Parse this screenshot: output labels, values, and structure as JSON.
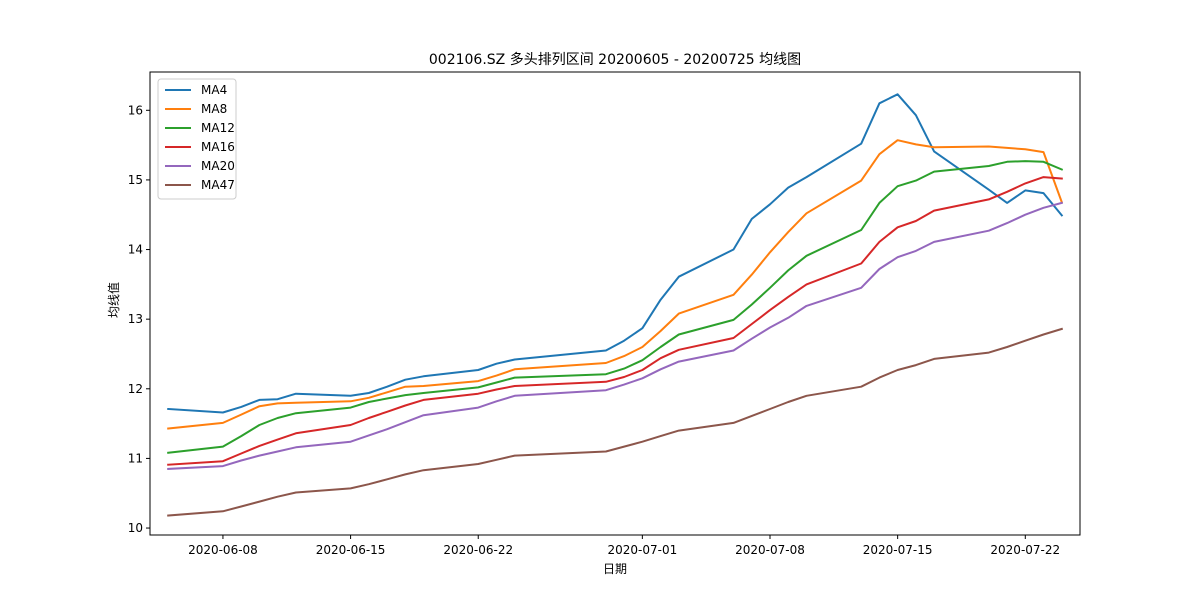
{
  "chart_data": {
    "type": "line",
    "title": "002106.SZ 多头排列区间 20200605 - 20200725 均线图",
    "xlabel": "日期",
    "ylabel": "均线值",
    "x": [
      "2020-06-05",
      "2020-06-08",
      "2020-06-09",
      "2020-06-10",
      "2020-06-11",
      "2020-06-12",
      "2020-06-15",
      "2020-06-16",
      "2020-06-17",
      "2020-06-18",
      "2020-06-19",
      "2020-06-22",
      "2020-06-23",
      "2020-06-24",
      "2020-06-29",
      "2020-06-30",
      "2020-07-01",
      "2020-07-02",
      "2020-07-03",
      "2020-07-06",
      "2020-07-07",
      "2020-07-08",
      "2020-07-09",
      "2020-07-10",
      "2020-07-13",
      "2020-07-14",
      "2020-07-15",
      "2020-07-16",
      "2020-07-17",
      "2020-07-20",
      "2020-07-21",
      "2020-07-22",
      "2020-07-23",
      "2020-07-24"
    ],
    "xticks": [
      "2020-06-08",
      "2020-06-15",
      "2020-06-22",
      "2020-07-01",
      "2020-07-08",
      "2020-07-15",
      "2020-07-22"
    ],
    "xlim": [
      "2020-06-04",
      "2020-07-25"
    ],
    "yticks": [
      10,
      11,
      12,
      13,
      14,
      15,
      16
    ],
    "ylim": [
      9.9,
      16.55
    ],
    "legend_position": "upper-left",
    "grid": false,
    "series": [
      {
        "name": "MA4",
        "color": "#1f77b4",
        "values": [
          11.71,
          11.66,
          11.74,
          11.84,
          11.85,
          11.93,
          11.9,
          11.94,
          12.03,
          12.13,
          12.18,
          12.27,
          12.36,
          12.42,
          12.55,
          12.69,
          12.87,
          13.28,
          13.61,
          14.0,
          14.44,
          14.65,
          14.89,
          15.04,
          15.52,
          16.1,
          16.23,
          15.93,
          15.41,
          14.86,
          14.67,
          14.85,
          14.81,
          14.49
        ]
      },
      {
        "name": "MA8",
        "color": "#ff7f0e",
        "values": [
          11.43,
          11.51,
          11.63,
          11.75,
          11.79,
          11.8,
          11.82,
          11.87,
          11.95,
          12.03,
          12.04,
          12.11,
          12.19,
          12.28,
          12.37,
          12.47,
          12.6,
          12.83,
          13.08,
          13.35,
          13.64,
          13.96,
          14.25,
          14.52,
          14.99,
          15.37,
          15.57,
          15.51,
          15.47,
          15.48,
          15.46,
          15.44,
          15.4,
          14.68
        ]
      },
      {
        "name": "MA12",
        "color": "#2ca02c",
        "values": [
          11.08,
          11.17,
          11.32,
          11.48,
          11.58,
          11.65,
          11.73,
          11.81,
          11.86,
          11.91,
          11.94,
          12.02,
          12.09,
          12.16,
          12.21,
          12.29,
          12.41,
          12.6,
          12.78,
          12.99,
          13.21,
          13.45,
          13.7,
          13.91,
          14.28,
          14.67,
          14.91,
          14.99,
          15.12,
          15.2,
          15.26,
          15.27,
          15.26,
          15.15
        ]
      },
      {
        "name": "MA16",
        "color": "#d62728",
        "values": [
          10.91,
          10.96,
          11.07,
          11.18,
          11.27,
          11.36,
          11.48,
          11.58,
          11.67,
          11.76,
          11.84,
          11.93,
          11.99,
          12.04,
          12.1,
          12.17,
          12.27,
          12.44,
          12.56,
          12.73,
          12.93,
          13.13,
          13.32,
          13.5,
          13.8,
          14.11,
          14.32,
          14.41,
          14.56,
          14.72,
          14.83,
          14.95,
          15.04,
          15.02
        ]
      },
      {
        "name": "MA20",
        "color": "#9467bd",
        "values": [
          10.85,
          10.89,
          10.97,
          11.04,
          11.1,
          11.16,
          11.24,
          11.33,
          11.42,
          11.52,
          11.62,
          11.73,
          11.82,
          11.9,
          11.98,
          12.06,
          12.15,
          12.28,
          12.39,
          12.55,
          12.72,
          12.88,
          13.02,
          13.19,
          13.45,
          13.72,
          13.89,
          13.98,
          14.11,
          14.27,
          14.38,
          14.5,
          14.6,
          14.67
        ]
      },
      {
        "name": "MA47",
        "color": "#8c564b",
        "values": [
          10.18,
          10.24,
          10.31,
          10.38,
          10.45,
          10.51,
          10.57,
          10.63,
          10.7,
          10.77,
          10.83,
          10.92,
          10.98,
          11.04,
          11.1,
          11.17,
          11.24,
          11.32,
          11.4,
          11.51,
          11.61,
          11.71,
          11.81,
          11.9,
          12.03,
          12.16,
          12.27,
          12.34,
          12.43,
          12.52,
          12.6,
          12.69,
          12.78,
          12.86
        ]
      }
    ]
  }
}
